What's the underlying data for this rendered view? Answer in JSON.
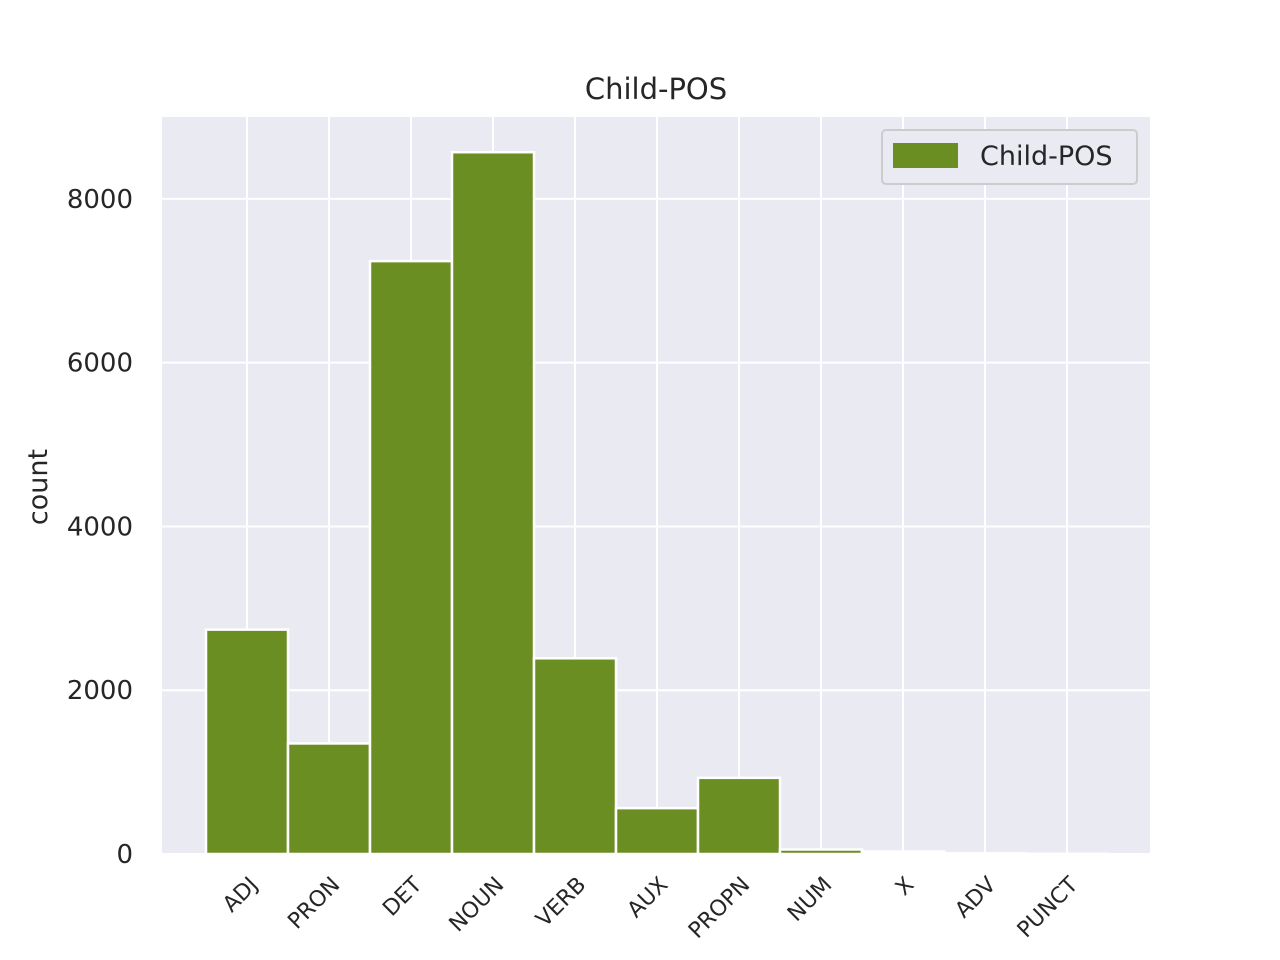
{
  "chart_data": {
    "type": "bar",
    "title": "Child-POS",
    "xlabel": "",
    "ylabel": "count",
    "categories": [
      "ADJ",
      "PRON",
      "DET",
      "NOUN",
      "VERB",
      "AUX",
      "PROPN",
      "NUM",
      "X",
      "ADV",
      "PUNCT"
    ],
    "series": [
      {
        "name": "Child-POS",
        "values": [
          2740,
          1350,
          7240,
          8570,
          2390,
          560,
          930,
          55,
          30,
          8,
          3
        ],
        "color": "#6b8e23"
      }
    ],
    "ylim": [
      0,
      9000
    ],
    "yticks": [
      0,
      2000,
      4000,
      6000,
      8000
    ],
    "grid": true,
    "legend_position": "top-right",
    "plot_background": "#eaeaf2",
    "grid_color": "#ffffff"
  }
}
